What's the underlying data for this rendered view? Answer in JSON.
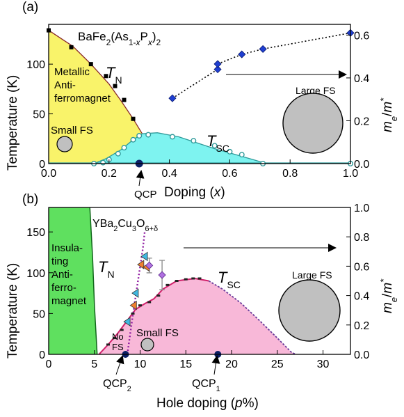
{
  "chart_data": [
    {
      "panel": "(a)",
      "type": "phase-diagram",
      "compound": {
        "base": "BaFe",
        "sub1": "2",
        "mid1": "(As",
        "sub2": "1-",
        "subvar": "x",
        "mid2": "P",
        "sub3": "x",
        "mid3": ")",
        "sub4": "2"
      },
      "xlabel": {
        "main": "Doping (",
        "var": "x",
        "end": ")"
      },
      "ylabel": "Temperature (K)",
      "y2label": {
        "m": "m",
        "e": "e",
        "slash": "/",
        "m2": "m",
        "star": "*"
      },
      "xlim": [
        0,
        1.0
      ],
      "ylim": [
        0,
        140
      ],
      "y2lim": [
        0,
        0.65
      ],
      "x_ticks": [
        "0.0",
        "0.2",
        "0.4",
        "0.6",
        "0.8",
        "1.0"
      ],
      "x_tick_values": [
        0,
        0.2,
        0.4,
        0.6,
        0.8,
        1.0
      ],
      "y_ticks": [
        "0",
        "50",
        "100"
      ],
      "y_tick_values": [
        0,
        50,
        100
      ],
      "y2_ticks": [
        "0.0",
        "0.2",
        "0.4",
        "0.6"
      ],
      "y2_tick_values": [
        0,
        0.2,
        0.4,
        0.6
      ],
      "regions": {
        "afm_label": [
          "Metallic",
          "Anti-",
          "ferromagnet"
        ],
        "afm_color": "#f9f36a",
        "sc_color": "#7ef3f0",
        "afm_boundary": [
          [
            0,
            134
          ],
          [
            0.08,
            118
          ],
          [
            0.14,
            100
          ],
          [
            0.2,
            80
          ],
          [
            0.24,
            63
          ],
          [
            0.28,
            45
          ],
          [
            0.31,
            30
          ]
        ],
        "sc_dome": [
          [
            0.15,
            0
          ],
          [
            0.19,
            5
          ],
          [
            0.24,
            14
          ],
          [
            0.28,
            24
          ],
          [
            0.31,
            30
          ],
          [
            0.36,
            31
          ],
          [
            0.43,
            27
          ],
          [
            0.49,
            21
          ],
          [
            0.55,
            15
          ],
          [
            0.62,
            9
          ],
          [
            0.7,
            2
          ],
          [
            0.72,
            0
          ]
        ]
      },
      "tn_label": {
        "t": "T",
        "sub": "N"
      },
      "tsc_label": {
        "t": "T",
        "sub": "SC"
      },
      "tn_points": [
        [
          0,
          134
        ],
        [
          0.075,
          117
        ],
        [
          0.14,
          100
        ],
        [
          0.19,
          88
        ],
        [
          0.22,
          78
        ],
        [
          0.25,
          64
        ],
        [
          0.28,
          45
        ]
      ],
      "tsc_points": [
        [
          0.15,
          0
        ],
        [
          0.18,
          1
        ],
        [
          0.2,
          4
        ],
        [
          0.23,
          10
        ],
        [
          0.25,
          16
        ],
        [
          0.28,
          24
        ],
        [
          0.3,
          28
        ],
        [
          0.33,
          29
        ],
        [
          0.41,
          27
        ],
        [
          0.48,
          23
        ],
        [
          0.55,
          18
        ],
        [
          0.6,
          12
        ],
        [
          0.64,
          9
        ],
        [
          0.71,
          0
        ],
        [
          1.0,
          0
        ]
      ],
      "mass_ratio_points": [
        [
          0.41,
          0.305
        ],
        [
          0.56,
          0.44
        ],
        [
          0.56,
          0.465
        ],
        [
          0.64,
          0.51
        ],
        [
          0.71,
          0.535
        ],
        [
          1.0,
          0.61
        ]
      ],
      "qcp": {
        "label": "QCP",
        "x": 0.3
      },
      "small_fs": {
        "label": "Small FS"
      },
      "large_fs": {
        "label": "Large FS"
      },
      "colors": {
        "mass_ratio": "#1f3fd1",
        "tn_line": "#8a2a2a",
        "tsc_line": "#2f9a9a",
        "fs_fill": "#c0c0c0",
        "qcp": "#0b1f66"
      }
    },
    {
      "panel": "(b)",
      "type": "phase-diagram",
      "compound": {
        "base": "YBa",
        "sub1": "2",
        "mid1": "Cu",
        "sub2": "3",
        "mid2": "O",
        "sub3": "6+δ"
      },
      "xlabel": {
        "main": "Hole doping (",
        "var": "p",
        "end": "%)"
      },
      "ylabel": "Temperature (K)",
      "y2label": {
        "m": "m",
        "e": "e",
        "slash": "/",
        "m2": "m",
        "star": "*"
      },
      "xlim": [
        0,
        33
      ],
      "ylim": [
        0,
        180
      ],
      "y2lim": [
        0,
        1.0
      ],
      "x_ticks": [
        "0",
        "5",
        "10",
        "15",
        "20",
        "25",
        "30"
      ],
      "x_tick_values": [
        0,
        5,
        10,
        15,
        20,
        25,
        30
      ],
      "y_ticks": [
        "0",
        "50",
        "100",
        "150"
      ],
      "y_tick_values": [
        0,
        50,
        100,
        150
      ],
      "y2_ticks": [
        "0.0",
        "0.2",
        "0.4",
        "0.6",
        "0.8",
        "1.0"
      ],
      "y2_tick_values": [
        0,
        0.2,
        0.4,
        0.6,
        0.8,
        1.0
      ],
      "regions": {
        "afm_label": [
          "Insula-",
          "ting",
          "Anti-",
          "ferro-",
          "magnet"
        ],
        "afm_color": "#5fe05f",
        "sc_color": "#f8b8d8",
        "afm_boundary": [
          [
            0,
            180
          ],
          [
            4.5,
            180
          ],
          [
            4.8,
            120
          ],
          [
            5.0,
            60
          ],
          [
            5.2,
            20
          ],
          [
            5.3,
            0
          ]
        ],
        "sc_dome": [
          [
            5.5,
            0
          ],
          [
            6.5,
            12
          ],
          [
            7.5,
            25
          ],
          [
            8.5,
            40
          ],
          [
            9.5,
            55
          ],
          [
            10.5,
            62
          ],
          [
            11.5,
            68
          ],
          [
            12.5,
            80
          ],
          [
            14,
            90
          ],
          [
            16,
            93
          ],
          [
            17.5,
            90
          ],
          [
            19,
            80
          ],
          [
            21,
            63
          ],
          [
            23,
            42
          ],
          [
            25,
            20
          ],
          [
            26.5,
            3
          ],
          [
            27,
            0
          ]
        ]
      },
      "tn_label": {
        "t": "T",
        "sub": "N"
      },
      "tsc_label": {
        "t": "T",
        "sub": "SC"
      },
      "no_fs_label": [
        "No",
        "FS"
      ],
      "tsc_points": [
        [
          6.5,
          12
        ],
        [
          7.2,
          20
        ],
        [
          8.0,
          30
        ],
        [
          9.2,
          50
        ],
        [
          10.0,
          60
        ],
        [
          11.0,
          64
        ],
        [
          12.0,
          72
        ],
        [
          13.0,
          85
        ],
        [
          14.0,
          90
        ],
        [
          15.0,
          92
        ],
        [
          15.8,
          93
        ],
        [
          16.5,
          93
        ]
      ],
      "crossover_line": [
        [
          8.6,
          0
        ],
        [
          9.1,
          40
        ],
        [
          9.5,
          70
        ],
        [
          9.9,
          100
        ],
        [
          10.3,
          130
        ],
        [
          10.5,
          150
        ]
      ],
      "triangle_points": [
        [
          8.6,
          40
        ],
        [
          9.3,
          60
        ],
        [
          9.5,
          75
        ],
        [
          10.1,
          110
        ],
        [
          10.5,
          120
        ],
        [
          10.7,
          107
        ]
      ],
      "mass_ratio_points": [
        [
          11.0,
          0.605,
          0.05
        ],
        [
          12.4,
          0.54,
          0.1
        ]
      ],
      "qcp1": {
        "label": {
          "main": "QCP",
          "sub": "1"
        },
        "x": 18.5
      },
      "qcp2": {
        "label": {
          "main": "QCP",
          "sub": "2"
        },
        "x": 8.4
      },
      "small_fs": {
        "label": "Small FS"
      },
      "large_fs": {
        "label": "Large FS"
      },
      "colors": {
        "mass_ratio": "#b070e0",
        "triangle_fill": "#f08030",
        "triangle_fill2": "#40b8e0",
        "crossover": "#8e1aa0",
        "tsc_line": "#d0206a",
        "fs_fill": "#c0c0c0",
        "qcp": "#0b1f66",
        "afm_line": "#10661a"
      }
    }
  ]
}
